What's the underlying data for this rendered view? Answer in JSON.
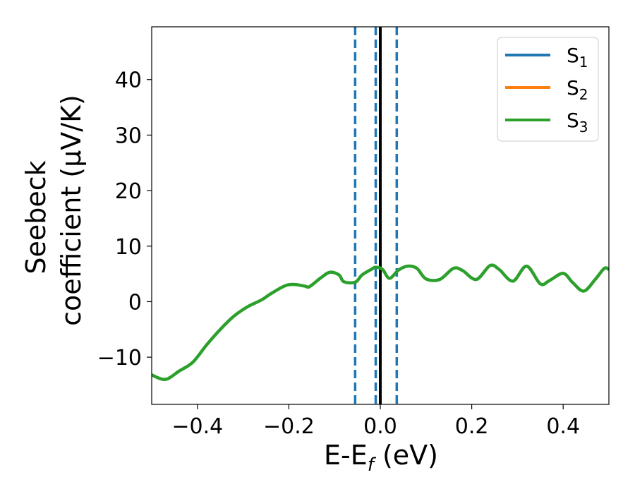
{
  "chart_data": {
    "type": "line",
    "xlabel": "E-E",
    "xlabel_sub": "f",
    "xlabel_unit": " (eV)",
    "ylabel_line1": "Seebeck",
    "ylabel_line2": "coefficient  (μV/K)",
    "xlim": [
      -0.5,
      0.5
    ],
    "ylim": [
      -18.5,
      49.5
    ],
    "x_ticks": [
      -0.4,
      -0.2,
      0.0,
      0.2,
      0.4
    ],
    "x_tick_labels": [
      "−0.4",
      "−0.2",
      "0.0",
      "0.2",
      "0.4"
    ],
    "y_ticks": [
      -10,
      0,
      10,
      20,
      30,
      40
    ],
    "y_tick_labels": [
      "−10",
      "0",
      "10",
      "20",
      "30",
      "40"
    ],
    "legend_position": "top-right",
    "series": [
      {
        "name": "S",
        "sub": "1",
        "color": "#1f77b4",
        "x": [],
        "y": []
      },
      {
        "name": "S",
        "sub": "2",
        "color": "#ff7f0e",
        "x": [],
        "y": []
      },
      {
        "name": "S",
        "sub": "3",
        "color": "#2ca02c",
        "x": [
          -0.5,
          -0.47,
          -0.44,
          -0.41,
          -0.38,
          -0.35,
          -0.32,
          -0.29,
          -0.26,
          -0.24,
          -0.21,
          -0.19,
          -0.165,
          -0.155,
          -0.13,
          -0.11,
          -0.09,
          -0.08,
          -0.055,
          -0.04,
          -0.02,
          -0.01,
          0.005,
          0.02,
          0.04,
          0.06,
          0.08,
          0.1,
          0.13,
          0.16,
          0.18,
          0.21,
          0.24,
          0.26,
          0.29,
          0.32,
          0.35,
          0.37,
          0.4,
          0.42,
          0.445,
          0.47,
          0.49,
          0.5
        ],
        "y": [
          -13.2,
          -14.0,
          -12.5,
          -10.9,
          -7.8,
          -5.0,
          -2.6,
          -0.9,
          0.3,
          1.4,
          2.8,
          3.1,
          2.8,
          2.7,
          4.3,
          5.3,
          4.8,
          3.6,
          3.5,
          4.8,
          5.8,
          6.2,
          5.8,
          4.2,
          5.7,
          6.4,
          6.0,
          4.1,
          4.0,
          6.0,
          5.6,
          4.0,
          6.5,
          5.8,
          3.7,
          6.4,
          3.2,
          3.8,
          5.1,
          3.5,
          1.9,
          4.0,
          6.0,
          5.8
        ]
      }
    ],
    "vertical_lines": [
      {
        "x": -0.055,
        "style": "dashed",
        "color": "#1f77b4"
      },
      {
        "x": -0.01,
        "style": "dashed",
        "color": "#1f77b4"
      },
      {
        "x": 0.0,
        "style": "solid",
        "color": "#000000"
      },
      {
        "x": 0.036,
        "style": "dashed",
        "color": "#1f77b4"
      }
    ]
  }
}
